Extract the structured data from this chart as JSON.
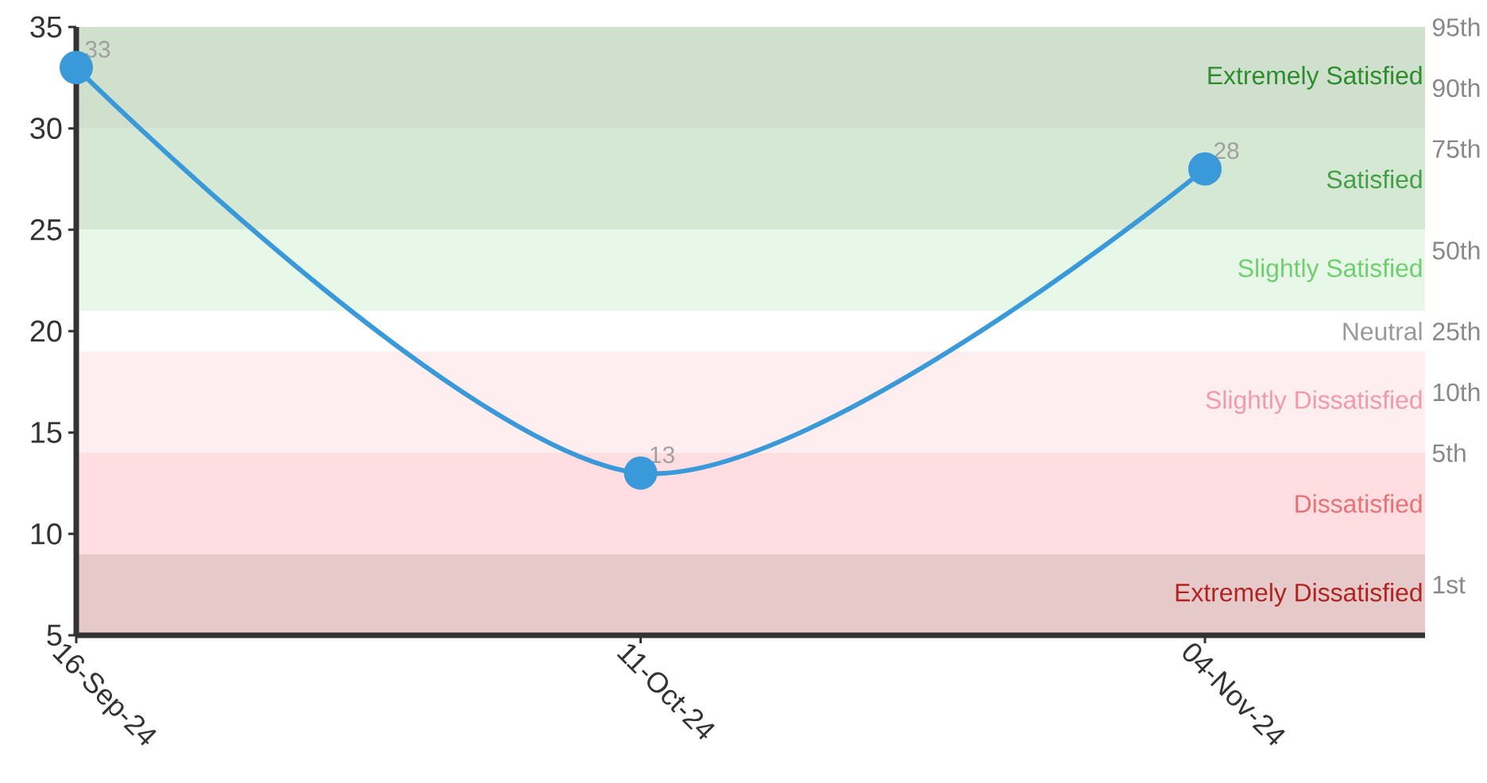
{
  "chart_data": {
    "type": "line",
    "categories": [
      "16-Sep-24",
      "11-Oct-24",
      "04-Nov-24"
    ],
    "series": [
      {
        "color": "#3a9ad9",
        "values": [
          33,
          13,
          28
        ]
      }
    ],
    "marker": "circle",
    "line_style": "solid",
    "data_labels": true,
    "ylim": [
      5,
      35
    ],
    "yticks": [
      5,
      10,
      15,
      20,
      25,
      30,
      35
    ],
    "annotations": [
      "95th",
      "90th",
      "75th",
      "50th",
      "25th",
      "10th",
      "5th",
      "1st"
    ],
    "bands": [
      {
        "axis": "y",
        "from": 30,
        "to": 35,
        "label": "Extremely Satisfied",
        "color": "#cfe0cd"
      },
      {
        "axis": "y",
        "from": 25,
        "to": 30,
        "label": "Satisfied",
        "color": "#d5e8d4"
      },
      {
        "axis": "y",
        "from": 21,
        "to": 25,
        "label": "Slightly Satisfied",
        "color": "#e8f8e8"
      },
      {
        "axis": "y",
        "from": 19,
        "to": 21,
        "label": "Neutral",
        "color": "#ffffff"
      },
      {
        "axis": "y",
        "from": 14,
        "to": 19,
        "label": "Slightly Dissatisfied",
        "color": "#ffeef0"
      },
      {
        "axis": "y",
        "from": 9,
        "to": 14,
        "label": "Dissatisfied",
        "color": "#ffdde1"
      },
      {
        "axis": "y",
        "from": 5,
        "to": 9,
        "label": "Extremely Dissatisfied",
        "color": "#e6c9c9"
      }
    ]
  }
}
